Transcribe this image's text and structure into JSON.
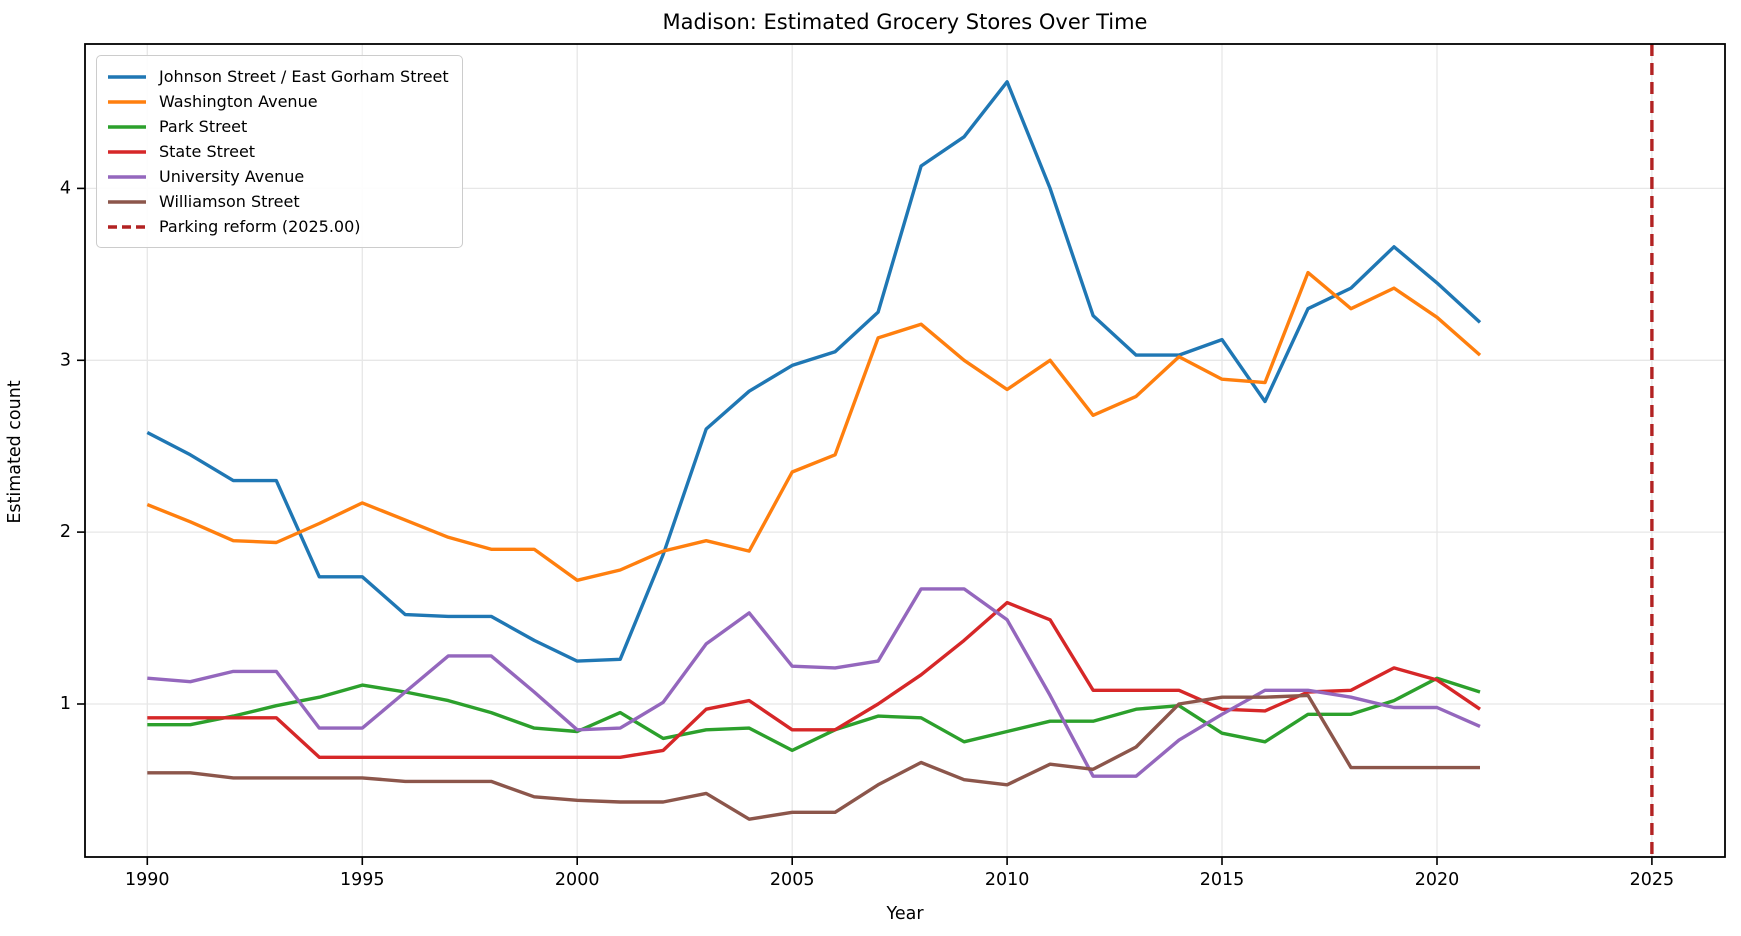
{
  "chart_data": {
    "type": "line",
    "title": "Madison: Estimated Grocery Stores Over Time",
    "xlabel": "Year",
    "ylabel": "Estimated count",
    "grid": true,
    "legend_position": "upper left",
    "background_color": "#ffffff",
    "grid_color": "#e7e7e7",
    "spine_color": "#000000",
    "xlim": [
      1988.55,
      2026.7
    ],
    "ylim": [
      0.11,
      4.84
    ],
    "xticks": [
      1990,
      1995,
      2000,
      2005,
      2010,
      2015,
      2020,
      2025
    ],
    "yticks": [
      1,
      2,
      3,
      4
    ],
    "x": [
      1990,
      1991,
      1992,
      1993,
      1994,
      1995,
      1996,
      1997,
      1998,
      1999,
      2000,
      2001,
      2002,
      2003,
      2004,
      2005,
      2006,
      2007,
      2008,
      2009,
      2010,
      2011,
      2012,
      2013,
      2014,
      2015,
      2016,
      2017,
      2018,
      2019,
      2020,
      2021
    ],
    "series": [
      {
        "name": "Johnson Street / East Gorham Street",
        "color": "#1f77b4",
        "values": [
          2.58,
          2.45,
          2.3,
          2.3,
          1.74,
          1.74,
          1.52,
          1.51,
          1.51,
          1.37,
          1.25,
          1.26,
          1.87,
          2.6,
          2.82,
          2.97,
          3.05,
          3.28,
          4.13,
          4.3,
          4.62,
          4.0,
          3.26,
          3.03,
          3.03,
          3.12,
          2.76,
          3.3,
          3.42,
          3.66,
          3.45,
          3.22
        ]
      },
      {
        "name": "Washington Avenue",
        "color": "#ff7f0e",
        "values": [
          2.16,
          2.06,
          1.95,
          1.94,
          2.05,
          2.17,
          2.07,
          1.97,
          1.9,
          1.9,
          1.72,
          1.78,
          1.89,
          1.95,
          1.89,
          2.35,
          2.45,
          3.13,
          3.21,
          3.0,
          2.83,
          3.0,
          2.68,
          2.79,
          3.02,
          2.89,
          2.87,
          3.51,
          3.3,
          3.42,
          3.25,
          3.03
        ]
      },
      {
        "name": "Park Street",
        "color": "#2ca02c",
        "values": [
          0.88,
          0.88,
          0.93,
          0.99,
          1.04,
          1.11,
          1.07,
          1.02,
          0.95,
          0.86,
          0.84,
          0.95,
          0.8,
          0.85,
          0.86,
          0.73,
          0.85,
          0.93,
          0.92,
          0.78,
          0.84,
          0.9,
          0.9,
          0.97,
          0.99,
          0.83,
          0.78,
          0.94,
          0.94,
          1.02,
          1.15,
          1.07
        ]
      },
      {
        "name": "State Street",
        "color": "#d62728",
        "values": [
          0.92,
          0.92,
          0.92,
          0.92,
          0.69,
          0.69,
          0.69,
          0.69,
          0.69,
          0.69,
          0.69,
          0.69,
          0.73,
          0.97,
          1.02,
          0.85,
          0.85,
          1.0,
          1.17,
          1.37,
          1.59,
          1.49,
          1.08,
          1.08,
          1.08,
          0.97,
          0.96,
          1.07,
          1.08,
          1.21,
          1.14,
          0.97
        ]
      },
      {
        "name": "University Avenue",
        "color": "#9467bd",
        "values": [
          1.15,
          1.13,
          1.19,
          1.19,
          0.86,
          0.86,
          1.07,
          1.28,
          1.28,
          1.07,
          0.85,
          0.86,
          1.01,
          1.35,
          1.53,
          1.22,
          1.21,
          1.25,
          1.67,
          1.67,
          1.49,
          1.05,
          0.58,
          0.58,
          0.79,
          0.94,
          1.08,
          1.08,
          1.04,
          0.98,
          0.98,
          0.87
        ]
      },
      {
        "name": "Williamson Street",
        "color": "#8c564b",
        "values": [
          0.6,
          0.6,
          0.57,
          0.57,
          0.57,
          0.57,
          0.55,
          0.55,
          0.55,
          0.46,
          0.44,
          0.43,
          0.43,
          0.48,
          0.33,
          0.37,
          0.37,
          0.53,
          0.66,
          0.56,
          0.53,
          0.65,
          0.62,
          0.75,
          1.0,
          1.04,
          1.04,
          1.05,
          0.63,
          0.63,
          0.63,
          0.63
        ]
      }
    ],
    "vline": {
      "x": 2025.0,
      "label": "Parking reform (2025.00)",
      "color": "#b22222",
      "dashed": true
    }
  }
}
